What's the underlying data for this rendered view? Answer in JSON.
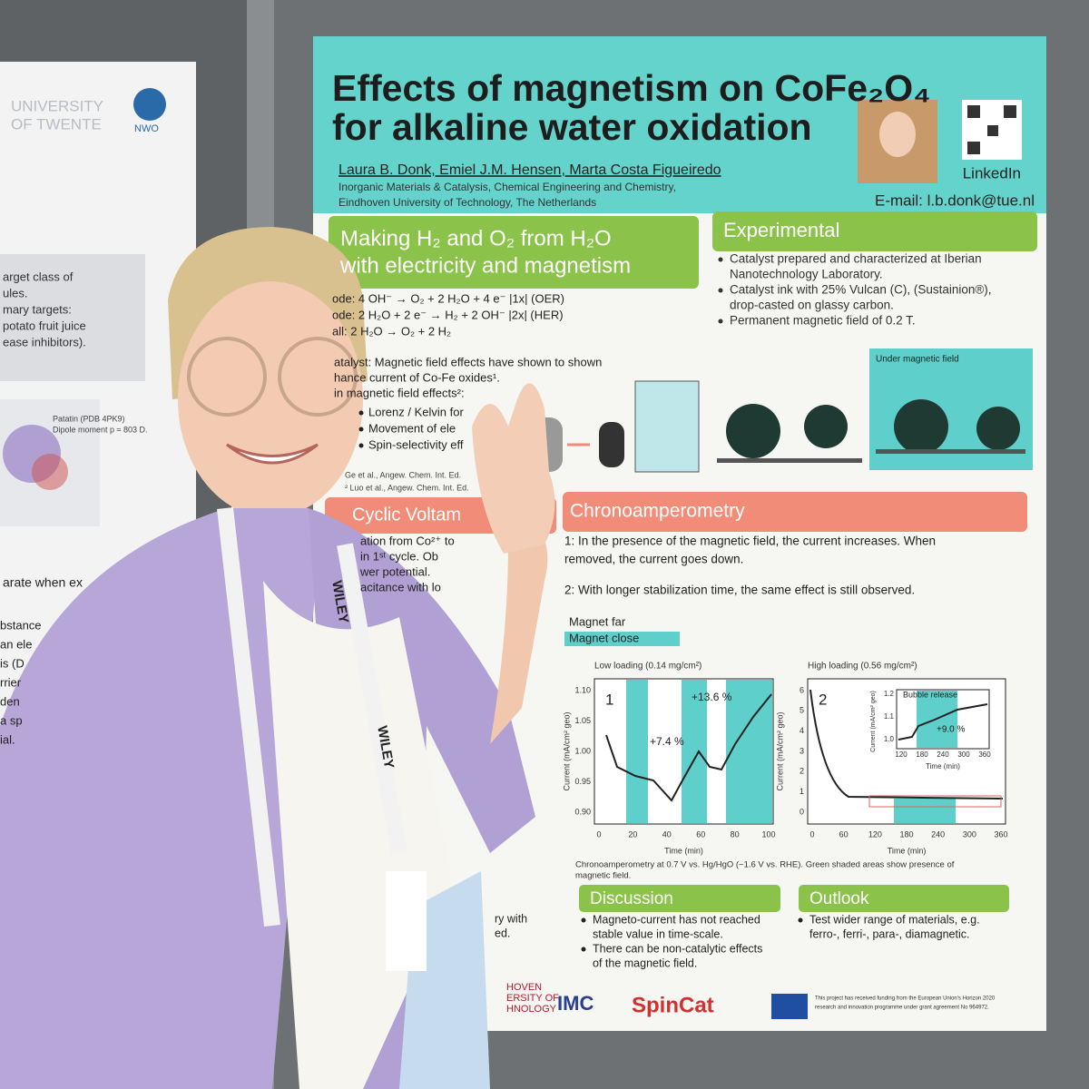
{
  "left_poster": {
    "logo": [
      "UNIVERSITY",
      "OF TWENTE"
    ],
    "logo2": "NWO",
    "lines": [
      "arget class of",
      "ules.",
      "mary targets:",
      "potato fruit juice",
      "ease inhibitors)."
    ],
    "protein": [
      "Patatin (PDB 4PK9)",
      "Dipole moment p ≈ 803 D."
    ],
    "lower": "arate when ex",
    "fragments": [
      "bstance",
      "an ele",
      "is (D",
      "rrier",
      "den",
      "a sp",
      "ial."
    ]
  },
  "poster": {
    "title": [
      "Effects of magnetism on CoFe₂O₄",
      "for alkaline water oxidation"
    ],
    "authors": "Laura B. Donk, Emiel J.M. Hensen, Marta Costa Figueiredo",
    "affiliation": [
      "Inorganic Materials & Catalysis, Chemical Engineering and Chemistry,",
      "Eindhoven University of Technology, The Netherlands"
    ],
    "linkedin": "LinkedIn",
    "email": "E-mail: l.b.donk@tue.nl",
    "intro": {
      "heading": [
        "Making H₂ and O₂ from H₂O",
        "with electricity and magnetism"
      ],
      "equations": [
        "ode:    4 OH⁻ → O₂ + 2 H₂O + 4 e⁻       |1x|  (OER)",
        "ode: 2 H₂O + 2 e⁻ → H₂ + 2 OH⁻        |2x|  (HER)",
        "all:    2 H₂O → O₂ + 2 H₂"
      ],
      "text": [
        "atalyst: Magnetic field effects have shown to shown",
        "hance current of Co-Fe oxides¹.",
        "in magnetic field effects²:"
      ],
      "bullets": [
        "Lorenz / Kelvin for",
        "Movement of ele",
        "Spin-selectivity eff"
      ],
      "refs": [
        "Ge et al., Angew. Chem. Int. Ed.",
        "² Luo et al., Angew. Chem. Int. Ed."
      ]
    },
    "experimental": {
      "heading": "Experimental",
      "bullets": [
        [
          "Catalyst prepared and characterized at Iberian",
          "Nanotechnology Laboratory."
        ],
        [
          "Catalyst ink with 25% Vulcan (C), (Sustainion®),",
          "drop-casted on glassy carbon."
        ],
        [
          "Permanent magnetic field of 0.2 T."
        ]
      ],
      "figure_label": "Under magnetic field"
    },
    "cv": {
      "heading": "Cyclic Voltam",
      "lines": [
        "ation from Co²⁺ to",
        "in 1ˢᵗ cycle. Ob",
        "wer potential.",
        "acitance with lo"
      ]
    },
    "chrono": {
      "heading": "Chronoamperometry",
      "text": [
        "1: In the presence of the magnetic field, the current increases. When",
        "removed, the current goes down.",
        "2: With longer stabilization time, the same effect is still observed."
      ],
      "legend": [
        "Magnet far",
        "Magnet close"
      ],
      "chart1": {
        "title": "Low loading (0.14 mg/cm²)",
        "panel": "1",
        "ylabel": "Current (mA/cm² geo)",
        "xlabel": "Time (min)",
        "yticks": [
          "0.90",
          "0.95",
          "1.00",
          "1.05",
          "1.10"
        ],
        "xticks": [
          "0",
          "20",
          "40",
          "60",
          "80",
          "100"
        ],
        "notes": [
          "+7.4 %",
          "+13.6 %"
        ]
      },
      "chart2": {
        "title": "High loading (0.56 mg/cm²)",
        "panel": "2",
        "ylabel": "Current (mA/cm² geo)",
        "xlabel": "Time (min)",
        "yticks": [
          "0",
          "1",
          "2",
          "3",
          "4",
          "5",
          "6"
        ],
        "xticks": [
          "0",
          "60",
          "120",
          "180",
          "240",
          "300",
          "360"
        ],
        "inset": {
          "title": "Bubble release",
          "note": "+9.0 %",
          "yticks": [
            "1.0",
            "1.1",
            "1.2"
          ],
          "xticks": [
            "120",
            "180",
            "240",
            "300",
            "360"
          ],
          "ylabel": "Current (mA/cm² geo)",
          "xlabel": "Time (min)"
        }
      },
      "caption": [
        "Chronoamperometry at 0.7 V vs. Hg/HgO (~1.6 V vs. RHE). Green shaded areas show presence of",
        "magnetic field."
      ]
    },
    "discussion": {
      "heading": "Discussion",
      "bullets": [
        [
          "Magneto-current has not reached",
          "stable value in time-scale."
        ],
        [
          "There can be non-catalytic effects",
          "of the magnetic field."
        ]
      ]
    },
    "outlook": {
      "heading": "Outlook",
      "bullets": [
        [
          "Test wider range of materials, e.g.",
          "ferro-, ferri-, para-, diamagnetic."
        ]
      ]
    },
    "left_fragments": [
      "ry with",
      "ed."
    ],
    "footer": {
      "tue": [
        "HOVEN",
        "ERSITY OF",
        "HNOLOGY"
      ],
      "imc": "IMC",
      "spincat": "SpinCat",
      "funding": [
        "This project has received funding from the European Union's Horizon 2020",
        "research and innovation programme under grant agreement No 964972."
      ]
    }
  },
  "lanyard": "WILEY"
}
